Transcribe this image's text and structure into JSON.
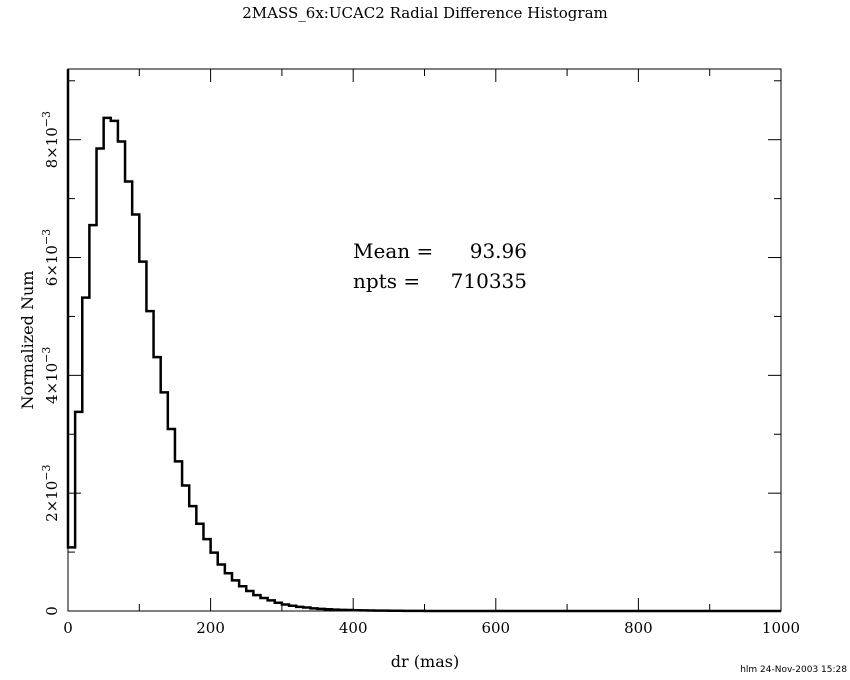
{
  "chart_data": {
    "type": "histogram",
    "title": "2MASS_6x:UCAC2 Radial Difference Histogram",
    "xlabel": "dr (mas)",
    "ylabel": "Normalized Num",
    "xlim": [
      0,
      1000
    ],
    "ylim": [
      0,
      0.0092
    ],
    "bin_width": 10,
    "x_ticks": [
      {
        "value": 0,
        "label": "0"
      },
      {
        "value": 200,
        "label": "200"
      },
      {
        "value": 400,
        "label": "400"
      },
      {
        "value": 600,
        "label": "600"
      },
      {
        "value": 800,
        "label": "800"
      },
      {
        "value": 1000,
        "label": "1000"
      }
    ],
    "y_ticks": [
      {
        "value": 0,
        "label": "0",
        "mantissa": "",
        "exp": ""
      },
      {
        "value": 0.002,
        "label": "",
        "mantissa": "2×10",
        "exp": "−3"
      },
      {
        "value": 0.004,
        "label": "",
        "mantissa": "4×10",
        "exp": "−3"
      },
      {
        "value": 0.006,
        "label": "",
        "mantissa": "6×10",
        "exp": "−3"
      },
      {
        "value": 0.008,
        "label": "",
        "mantissa": "8×10",
        "exp": "−3"
      }
    ],
    "bin_starts": [
      0,
      10,
      20,
      30,
      40,
      50,
      60,
      70,
      80,
      90,
      100,
      110,
      120,
      130,
      140,
      150,
      160,
      170,
      180,
      190,
      200,
      210,
      220,
      230,
      240,
      250,
      260,
      270,
      280,
      290,
      300,
      310,
      320,
      330,
      340,
      350,
      360,
      370,
      380,
      390,
      400,
      410,
      420,
      430,
      440,
      450,
      460,
      470,
      480,
      490,
      500
    ],
    "values": [
      0.00108,
      0.00338,
      0.00532,
      0.00655,
      0.00785,
      0.00837,
      0.00832,
      0.00797,
      0.00729,
      0.00673,
      0.00593,
      0.00509,
      0.00431,
      0.00371,
      0.00309,
      0.00254,
      0.00213,
      0.00178,
      0.00148,
      0.00122,
      0.00099,
      0.00079,
      0.00064,
      0.00052,
      0.00042,
      0.00034,
      0.00027,
      0.00022,
      0.00018,
      0.00014,
      0.00011,
      9e-05,
      7e-05,
      6e-05,
      4.5e-05,
      3.6e-05,
      3e-05,
      2.4e-05,
      2e-05,
      1.6e-05,
      1.3e-05,
      1.1e-05,
      9e-06,
      7e-06,
      6e-06,
      5e-06,
      4e-06,
      3e-06,
      2e-06,
      2e-06,
      1e-06
    ],
    "annotations": [
      {
        "label": "Mean =",
        "value": "93.96"
      },
      {
        "label": "npts =",
        "value": "710335"
      }
    ],
    "grid": false
  },
  "footer": "hlm 24-Nov-2003 15:28"
}
